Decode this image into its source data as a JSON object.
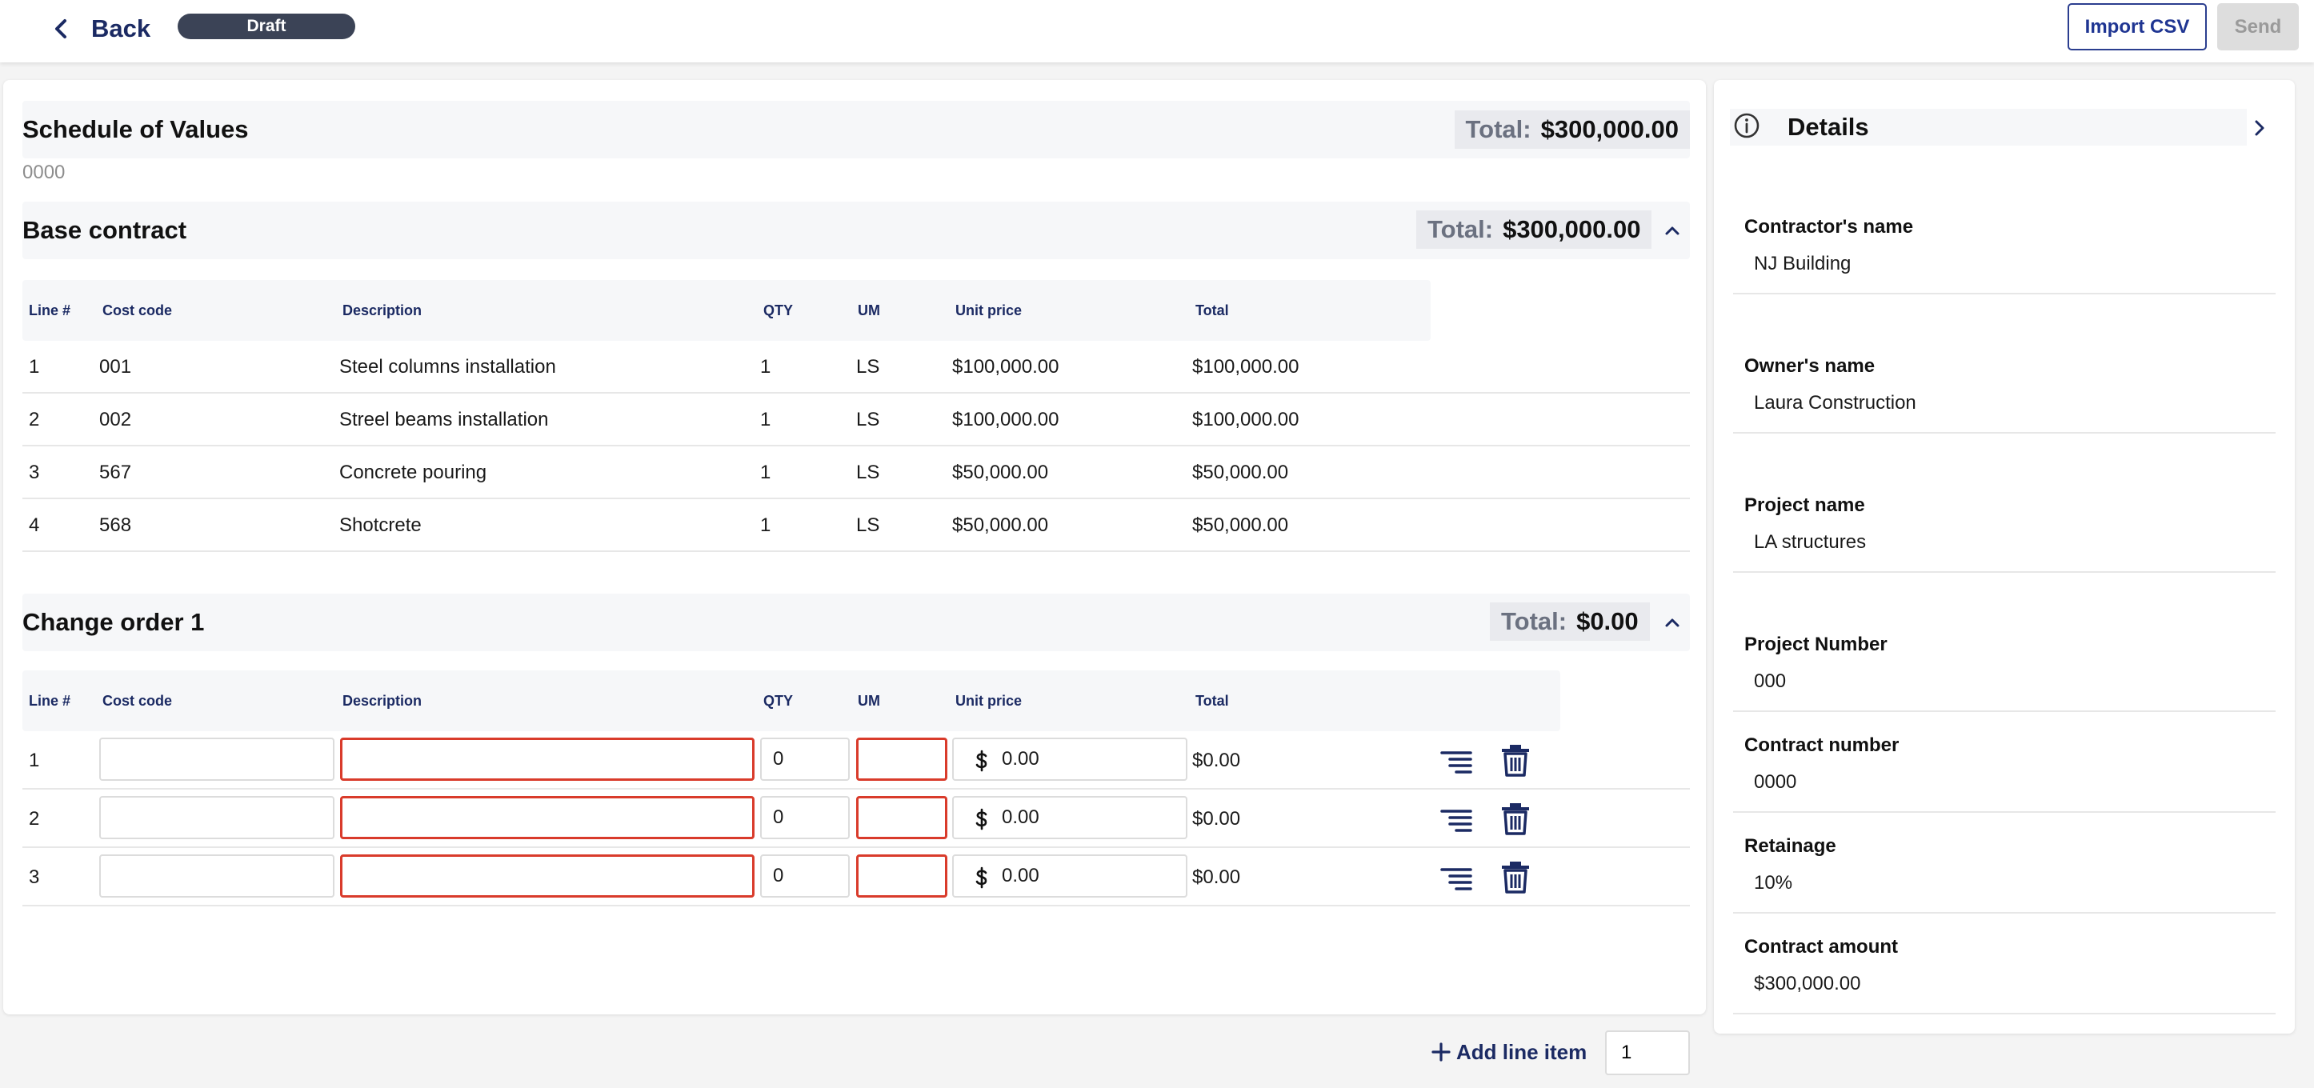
{
  "topbar": {
    "back_label": "Back",
    "status": "Draft",
    "import_label": "Import CSV",
    "send_label": "Send"
  },
  "sov": {
    "title": "Schedule of Values",
    "number": "0000",
    "total_label": "Total:",
    "total_value": "$300,000.00"
  },
  "columns": {
    "line": "Line #",
    "cost_code": "Cost code",
    "description": "Description",
    "qty": "QTY",
    "um": "UM",
    "unit_price": "Unit price",
    "total": "Total"
  },
  "base_contract": {
    "title": "Base contract",
    "total_label": "Total:",
    "total_value": "$300,000.00",
    "rows": [
      {
        "line": "1",
        "cost_code": "001",
        "description": "Steel columns installation",
        "qty": "1",
        "um": "LS",
        "unit_price": "$100,000.00",
        "total": "$100,000.00"
      },
      {
        "line": "2",
        "cost_code": "002",
        "description": "Streel beams installation",
        "qty": "1",
        "um": "LS",
        "unit_price": "$100,000.00",
        "total": "$100,000.00"
      },
      {
        "line": "3",
        "cost_code": "567",
        "description": "Concrete pouring",
        "qty": "1",
        "um": "LS",
        "unit_price": "$50,000.00",
        "total": "$50,000.00"
      },
      {
        "line": "4",
        "cost_code": "568",
        "description": "Shotcrete",
        "qty": "1",
        "um": "LS",
        "unit_price": "$50,000.00",
        "total": "$50,000.00"
      }
    ]
  },
  "change_order": {
    "title": "Change order 1",
    "total_label": "Total:",
    "total_value": "$0.00",
    "rows": [
      {
        "line": "1",
        "cost_code": "",
        "description": "",
        "qty": "0",
        "um": "",
        "unit_price": "0.00",
        "total": "$0.00"
      },
      {
        "line": "2",
        "cost_code": "",
        "description": "",
        "qty": "0",
        "um": "",
        "unit_price": "0.00",
        "total": "$0.00"
      },
      {
        "line": "3",
        "cost_code": "",
        "description": "",
        "qty": "0",
        "um": "",
        "unit_price": "0.00",
        "total": "$0.00"
      }
    ],
    "add_line_label": "Add line item",
    "add_count": "1"
  },
  "details": {
    "title": "Details",
    "fields": [
      {
        "label": "Contractor's name",
        "value": "NJ Building"
      },
      {
        "label": "Owner's name",
        "value": "Laura Construction"
      },
      {
        "label": "Project name",
        "value": "LA structures"
      },
      {
        "label": "Project Number",
        "value": "000"
      },
      {
        "label": "Contract number",
        "value": "0000"
      },
      {
        "label": "Retainage",
        "value": "10%"
      },
      {
        "label": "Contract amount",
        "value": "$300,000.00"
      }
    ]
  },
  "icons": {
    "back": "chevron-left-icon",
    "collapse": "chevron-up-icon",
    "reorder": "reorder-lines-icon",
    "delete": "trash-icon",
    "add": "plus-icon",
    "currency": "dollar-icon",
    "info": "info-icon",
    "expand": "chevron-right-icon"
  },
  "colors": {
    "navy": "#1b2a63",
    "error": "#d93b2b",
    "draft_pill": "#3b4356"
  }
}
